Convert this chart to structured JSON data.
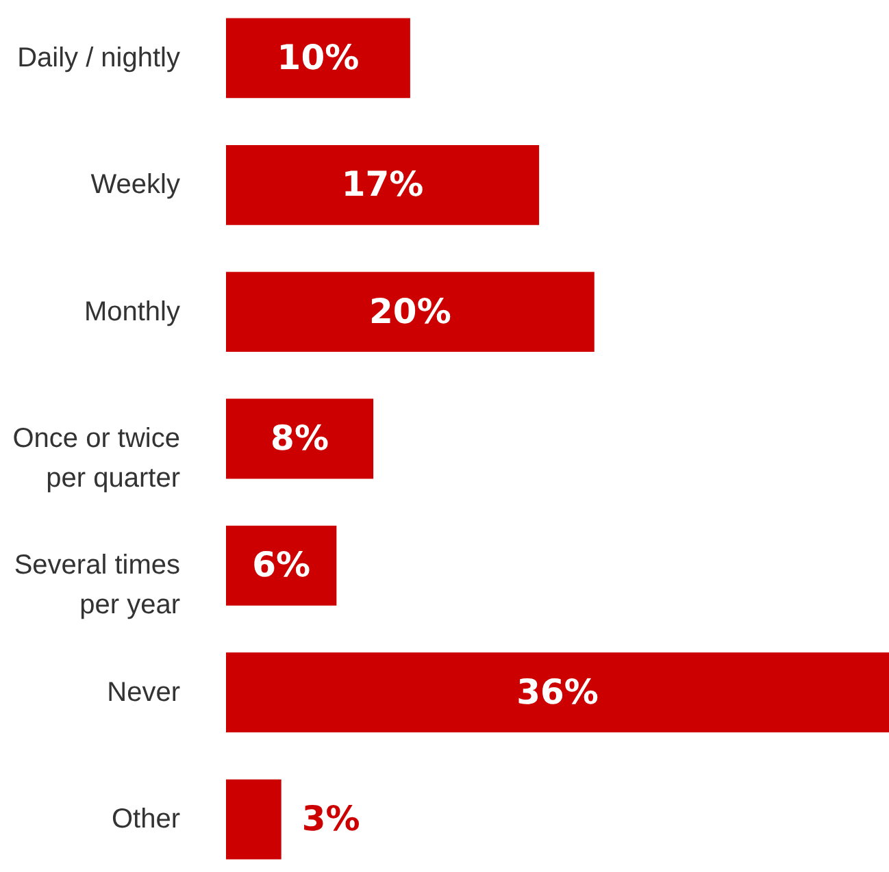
{
  "chart_data": {
    "type": "bar",
    "orientation": "horizontal",
    "categories": [
      "Daily / nightly",
      "Weekly",
      "Monthly",
      "Once or twice\nper quarter",
      "Several times\nper year",
      "Never",
      "Other"
    ],
    "values": [
      10,
      17,
      20,
      8,
      6,
      36,
      3
    ],
    "color": "#cc0000",
    "value_labels": [
      "10%",
      "17%",
      "20%",
      "8%",
      "6%",
      "36%",
      "3%"
    ]
  }
}
